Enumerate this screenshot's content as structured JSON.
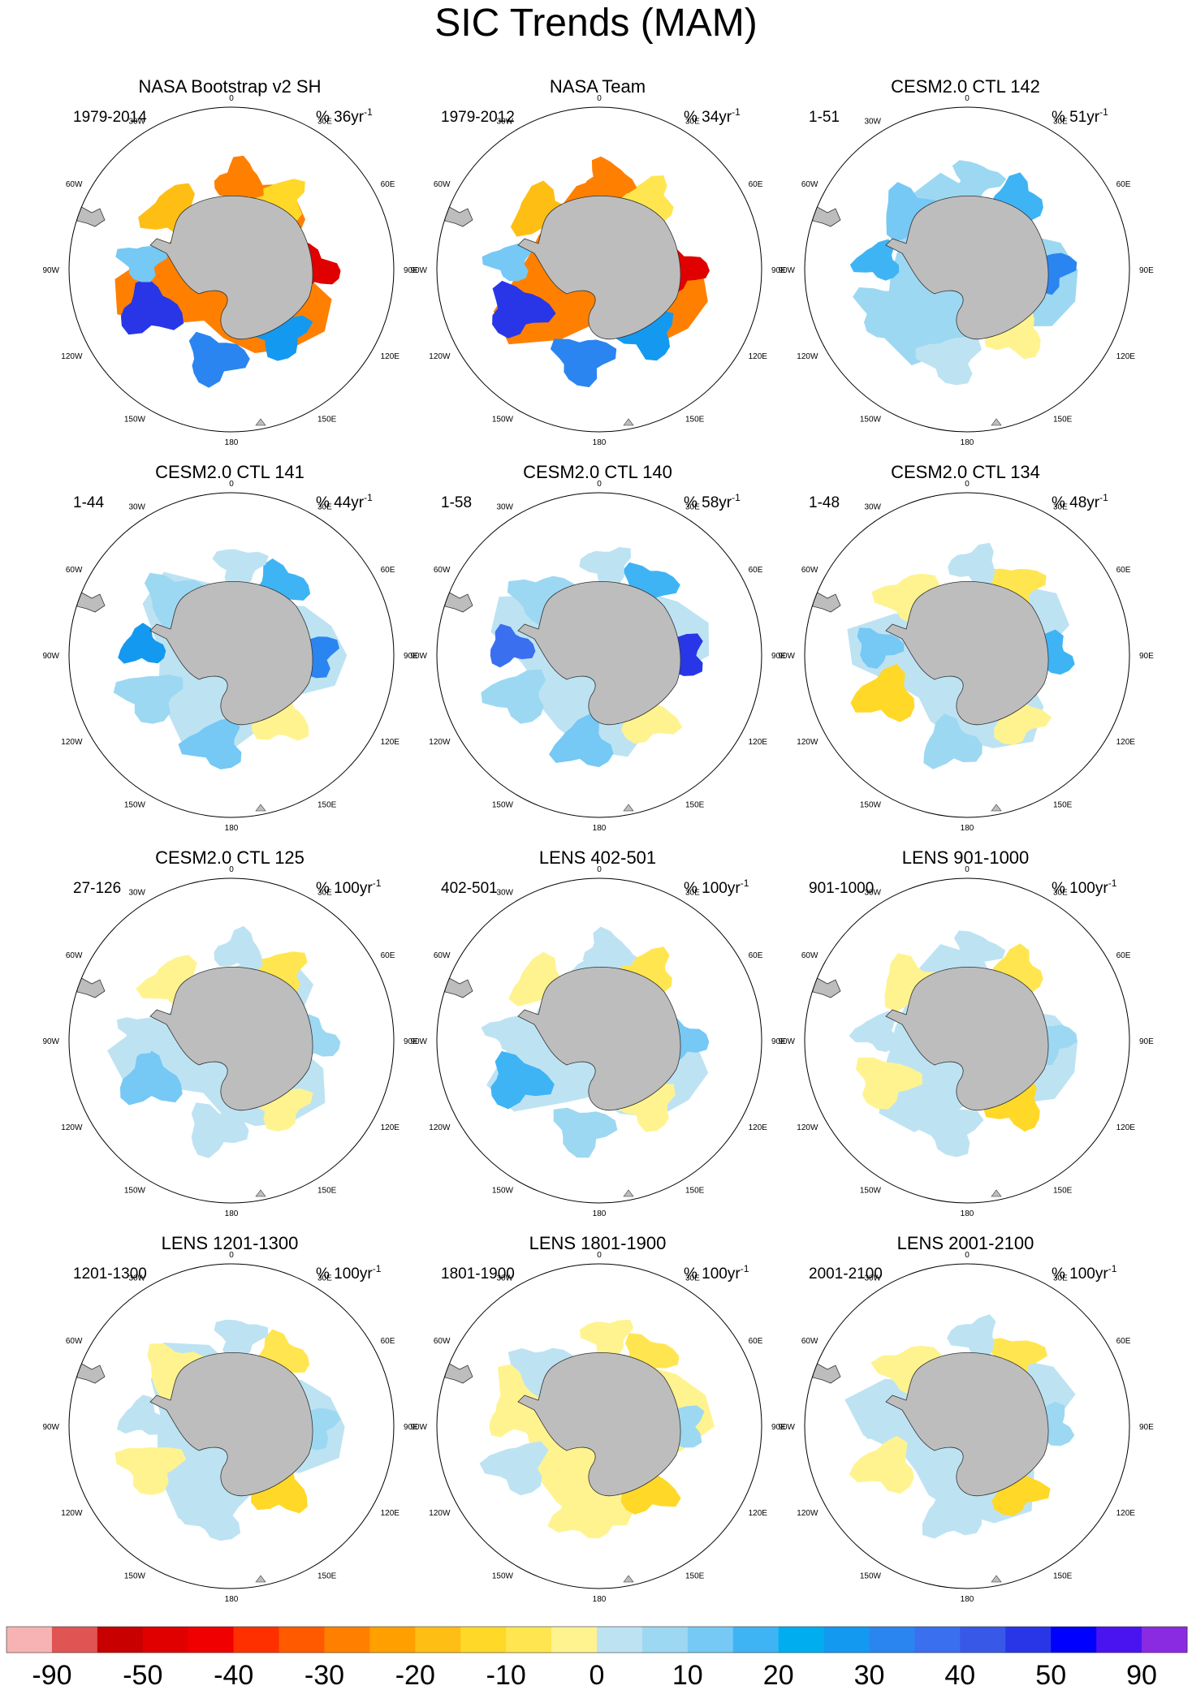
{
  "chart_data": {
    "type": "polar-contour-map-grid",
    "title": "SIC Trends (MAM)",
    "projection": "South Polar Stereographic",
    "longitude_labels": [
      "0",
      "30E",
      "60E",
      "90E",
      "120E",
      "150E",
      "180",
      "150W",
      "120W",
      "90W",
      "60W",
      "30W"
    ],
    "panels": [
      {
        "title": "NASA Bootstrap v2 SH",
        "period": "1979-2014",
        "unit": "%",
        "rate": "36yr",
        "exponent": "-1",
        "dominant": "mixed: strong positive Ross Sea, strong negative Bellingshausen/Amundsen"
      },
      {
        "title": "NASA Team",
        "period": "1979-2012",
        "unit": "%",
        "rate": "34yr",
        "exponent": "-1",
        "dominant": "mixed: strong positive Ross Sea, strong negative Bellingshausen/Amundsen"
      },
      {
        "title": "CESM2.0 CTL 142",
        "period": "1-51",
        "unit": "%",
        "rate": "51yr",
        "exponent": "-1",
        "dominant": "positive"
      },
      {
        "title": "CESM2.0 CTL 141",
        "period": "1-44",
        "unit": "%",
        "rate": "44yr",
        "exponent": "-1",
        "dominant": "positive"
      },
      {
        "title": "CESM2.0 CTL 140",
        "period": "1-58",
        "unit": "%",
        "rate": "58yr",
        "exponent": "-1",
        "dominant": "positive"
      },
      {
        "title": "CESM2.0 CTL 134",
        "period": "1-48",
        "unit": "%",
        "rate": "48yr",
        "exponent": "-1",
        "dominant": "mixed"
      },
      {
        "title": "CESM2.0 CTL 125",
        "period": "27-126",
        "unit": "%",
        "rate": "100yr",
        "exponent": "-1",
        "dominant": "weak mixed"
      },
      {
        "title": "LENS 402-501",
        "period": "402-501",
        "unit": "%",
        "rate": "100yr",
        "exponent": "-1",
        "dominant": "weak mixed"
      },
      {
        "title": "LENS 901-1000",
        "period": "901-1000",
        "unit": "%",
        "rate": "100yr",
        "exponent": "-1",
        "dominant": "weak mixed"
      },
      {
        "title": "LENS 1201-1300",
        "period": "1201-1300",
        "unit": "%",
        "rate": "100yr",
        "exponent": "-1",
        "dominant": "weak mixed"
      },
      {
        "title": "LENS 1801-1900",
        "period": "1801-1900",
        "unit": "%",
        "rate": "100yr",
        "exponent": "-1",
        "dominant": "weak negative"
      },
      {
        "title": "LENS 2001-2100",
        "period": "2001-2100",
        "unit": "%",
        "rate": "100yr",
        "exponent": "-1",
        "dominant": "weak mixed"
      }
    ],
    "colorbar": {
      "tick_labels": [
        "-90",
        "-50",
        "-40",
        "-30",
        "-20",
        "-10",
        "0",
        "10",
        "20",
        "30",
        "40",
        "50",
        "90"
      ],
      "colors": [
        "#f7b3b3",
        "#e05454",
        "#c80000",
        "#e00000",
        "#f00000",
        "#ff3000",
        "#ff5a00",
        "#ff8000",
        "#ffa000",
        "#ffbe14",
        "#ffd828",
        "#ffe650",
        "#fff38f",
        "#bde3f3",
        "#9dd8f2",
        "#76c8f5",
        "#3fb4f5",
        "#00aef0",
        "#1499f0",
        "#2a85f0",
        "#3a6ff0",
        "#3858e8",
        "#2836e8",
        "#0000ff",
        "#4a14f0",
        "#8a2be2"
      ]
    }
  }
}
